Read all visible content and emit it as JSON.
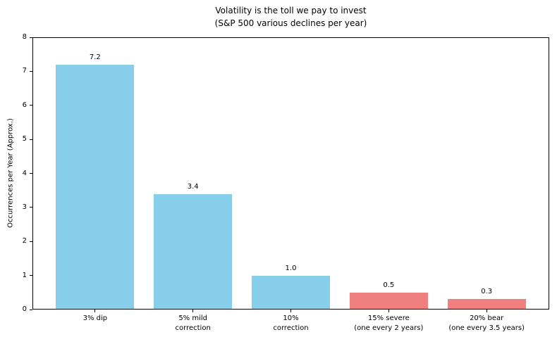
{
  "figure": {
    "kind": "matplotlib-style bar chart"
  },
  "chart_data": {
    "type": "bar",
    "title": "Volatility is the toll we pay to invest",
    "subtitle": "(S&P 500 various declines per year)",
    "categories": [
      [
        "3% dip"
      ],
      [
        "5% mild",
        "correction"
      ],
      [
        "10%",
        "correction"
      ],
      [
        "15% severe",
        "(one every 2 years)"
      ],
      [
        "20% bear",
        "(one every 3.5 years)"
      ]
    ],
    "values": [
      7.2,
      3.4,
      1.0,
      0.5,
      0.3
    ],
    "value_labels": [
      "7.2",
      "3.4",
      "1.0",
      "0.5",
      "0.3"
    ],
    "bar_colors": [
      "#87CEEB",
      "#87CEEB",
      "#87CEEB",
      "#F08080",
      "#F08080"
    ],
    "xlabel": "",
    "ylabel": "Occurrences per Year (Approx.)",
    "ylim": [
      0,
      8
    ],
    "yticks": [
      0,
      1,
      2,
      3,
      4,
      5,
      6,
      7,
      8
    ],
    "grid": false,
    "legend": null,
    "colors": {
      "blue_bars": "#87CEEB",
      "red_bars": "#F08080",
      "text": "#000000",
      "background": "#ffffff"
    }
  }
}
